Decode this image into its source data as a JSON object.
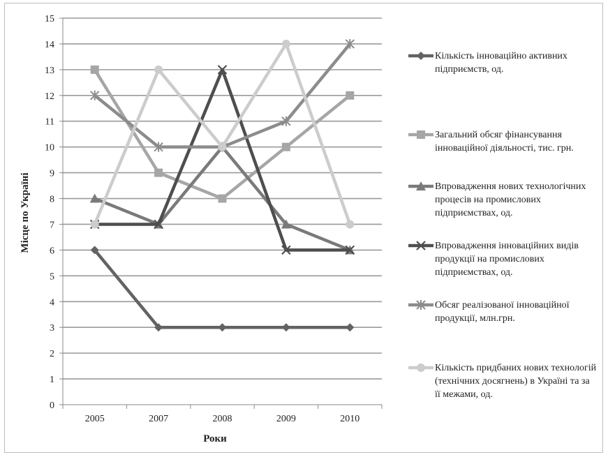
{
  "chart_data": {
    "type": "line",
    "title": "",
    "xlabel": "Роки",
    "ylabel": "Місце по Україні",
    "categories": [
      "2005",
      "2007",
      "2008",
      "2009",
      "2010"
    ],
    "ylim": [
      0,
      15
    ],
    "yticks": [
      "0",
      "1",
      "2",
      "3",
      "4",
      "5",
      "6",
      "7",
      "8",
      "9",
      "10",
      "11",
      "12",
      "13",
      "14",
      "15"
    ],
    "grid": true,
    "legend_position": "right",
    "series": [
      {
        "name": "Кількість  інноваційно активних  підприємств, од.",
        "values": [
          6,
          3,
          3,
          3,
          3
        ],
        "color": "#636363",
        "marker": "diamond"
      },
      {
        "name": "Загальний обсяг фінансування інноваційної діяльності,  тис. грн.",
        "values": [
          13,
          9,
          8,
          10,
          12
        ],
        "color": "#a6a6a6",
        "marker": "square"
      },
      {
        "name": "Впровадження нових технологічних  процесів на промислових підприємствах, од.",
        "values": [
          8,
          7,
          10,
          7,
          6
        ],
        "color": "#7a7a7a",
        "marker": "triangle"
      },
      {
        "name": "Впровадження інноваційних видів продукції на промислових підприємствах, од.",
        "values": [
          7,
          7,
          13,
          6,
          6
        ],
        "color": "#4e4e4e",
        "marker": "x"
      },
      {
        "name": "Обсяг реалізованої інноваційної продукції, млн.грн.",
        "values": [
          12,
          10,
          10,
          11,
          14
        ],
        "color": "#8c8c8c",
        "marker": "star"
      },
      {
        "name": "Кількість  придбаних нових технологій  (технічних досягнень) в Україні та за її межами, од.",
        "values": [
          7,
          13,
          10,
          14,
          7
        ],
        "color": "#cccccc",
        "marker": "circle"
      }
    ]
  }
}
